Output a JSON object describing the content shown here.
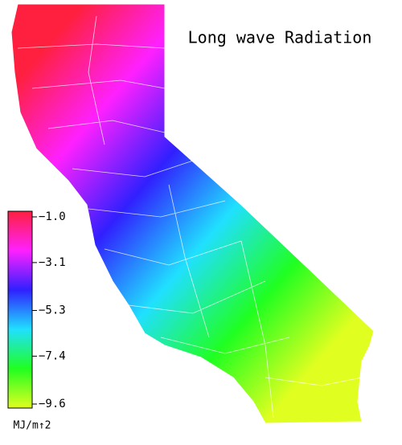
{
  "map": {
    "title": "Long wave Radiation",
    "colorbar": {
      "lim": [
        -1.0,
        -9.6
      ],
      "colors": [
        "#ff2040",
        "#ff20ff",
        "#3020ff",
        "#20e0ff",
        "#20ff20",
        "#e0ff20"
      ],
      "ticks": [
        {
          "value": -1.0,
          "label": "−1.0"
        },
        {
          "value": -3.1,
          "label": "−3.1"
        },
        {
          "value": -5.3,
          "label": "−5.3"
        },
        {
          "value": -7.4,
          "label": "−7.4"
        },
        {
          "value": -9.6,
          "label": "−9.6"
        }
      ],
      "unit": "MJ/m↑2"
    }
  }
}
